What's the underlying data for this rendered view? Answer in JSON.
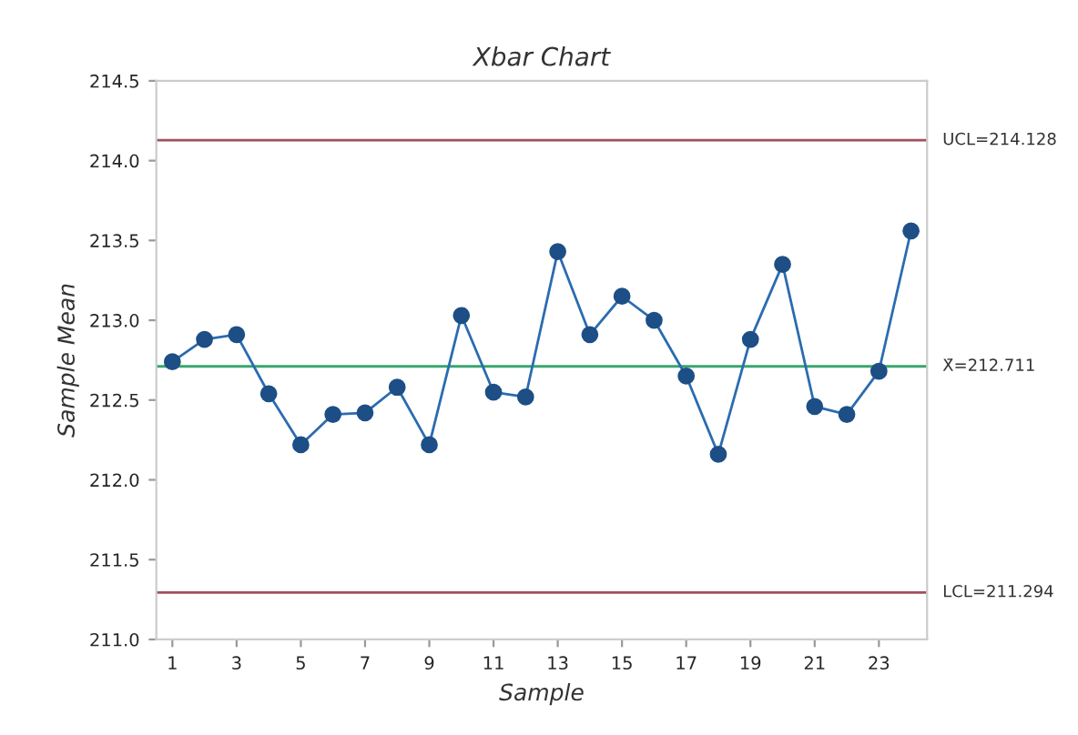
{
  "chart_data": {
    "type": "line",
    "title": "Xbar Chart",
    "xlabel": "Sample",
    "ylabel": "Sample Mean",
    "x": [
      1,
      2,
      3,
      4,
      5,
      6,
      7,
      8,
      9,
      10,
      11,
      12,
      13,
      14,
      15,
      16,
      17,
      18,
      19,
      20,
      21,
      22,
      23,
      24
    ],
    "series": [
      {
        "color": "#2a6cb0",
        "values": [
          212.74,
          212.88,
          212.91,
          212.54,
          212.22,
          212.41,
          212.42,
          212.58,
          212.22,
          213.03,
          212.55,
          212.52,
          213.43,
          212.91,
          213.15,
          213.0,
          212.65,
          212.16,
          212.88,
          213.35,
          212.46,
          212.41,
          212.68,
          213.56
        ]
      }
    ],
    "xlim": [
      0.5,
      24.5
    ],
    "xticks": [
      1,
      3,
      5,
      7,
      9,
      11,
      13,
      15,
      17,
      19,
      21,
      23
    ],
    "ylim": [
      211.0,
      214.5
    ],
    "yticks": [
      {
        "value": 211.0,
        "label": "211.0"
      },
      {
        "value": 211.5,
        "label": "211.5"
      },
      {
        "value": 212.0,
        "label": "212.0"
      },
      {
        "value": 212.5,
        "label": "212.5"
      },
      {
        "value": 213.0,
        "label": "213.0"
      },
      {
        "value": 213.5,
        "label": "213.5"
      },
      {
        "value": 214.0,
        "label": "214.0"
      },
      {
        "value": 214.5,
        "label": "214.5"
      }
    ],
    "ref_lines": [
      {
        "axis": "y",
        "value": 214.128,
        "label": "UCL=214.128",
        "color": "#a0505a"
      },
      {
        "axis": "y",
        "value": 212.711,
        "label": "X̄=212.711",
        "color": "#3aa56e"
      },
      {
        "axis": "y",
        "value": 211.294,
        "label": "LCL=211.294",
        "color": "#a0505a"
      }
    ],
    "grid": false,
    "legend": false,
    "marker": "circle",
    "line_style": "solid"
  }
}
